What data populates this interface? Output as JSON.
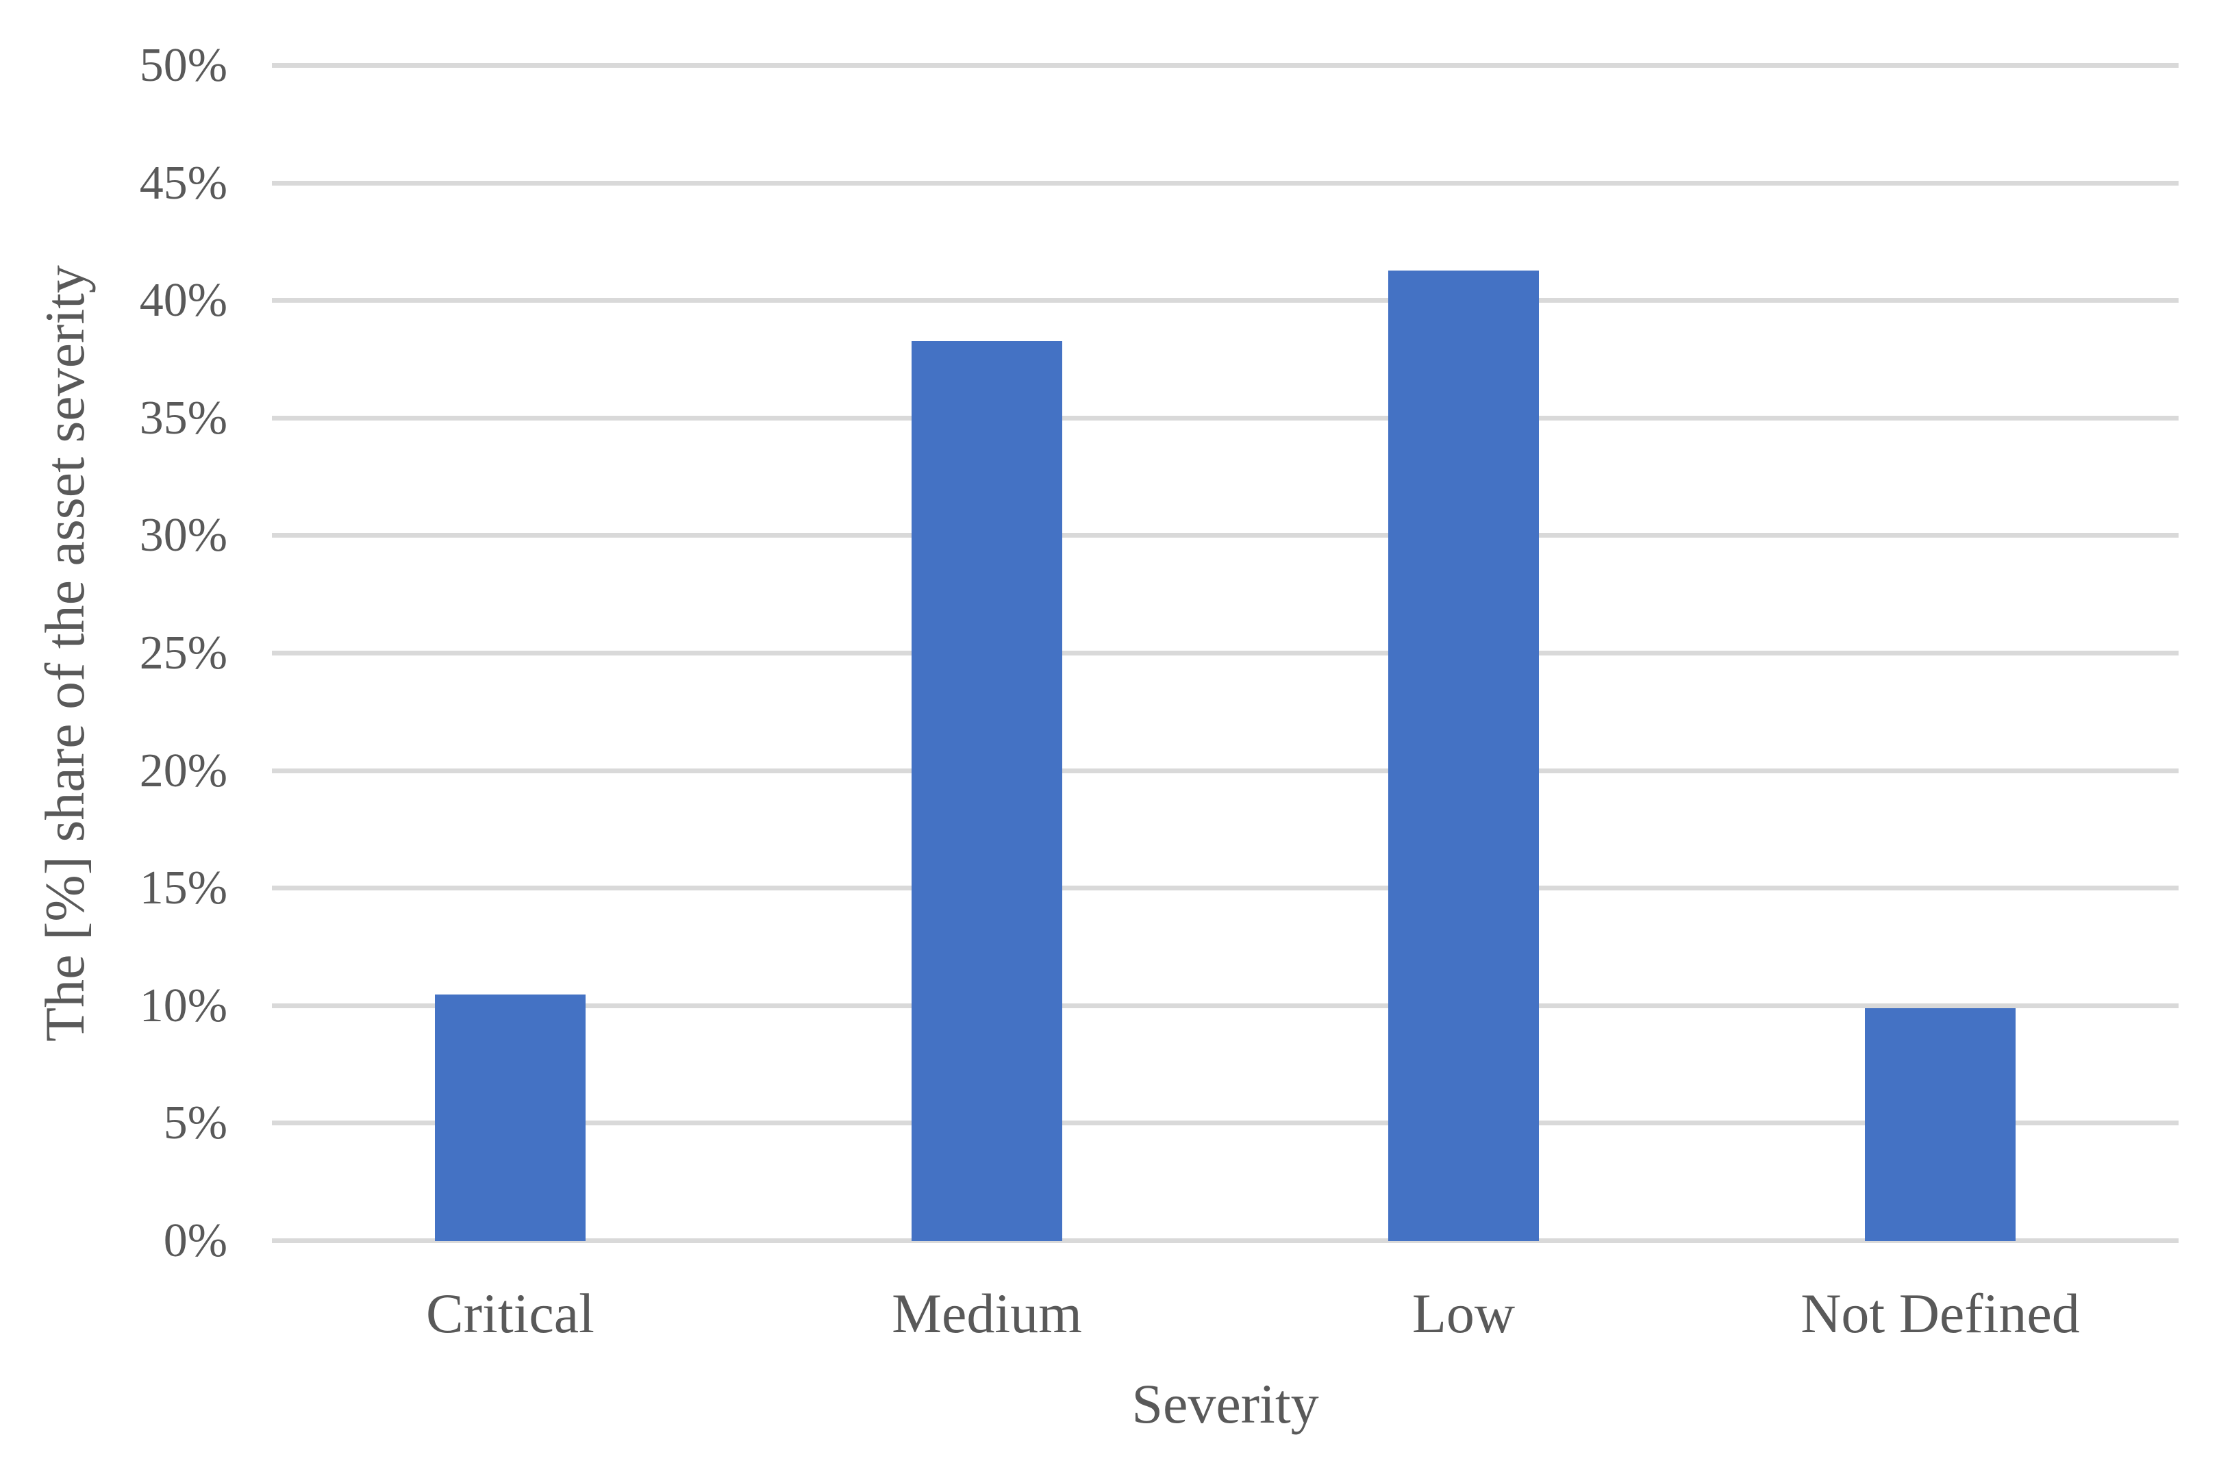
{
  "chart_data": {
    "type": "bar",
    "title": "",
    "xlabel": "Severity",
    "ylabel": "The [%] share of the asset severity",
    "categories": [
      "Critical",
      "Medium",
      "Low",
      "Not Defined"
    ],
    "values": [
      10.5,
      38.3,
      41.3,
      9.9
    ],
    "unit": "%",
    "ylim": [
      0,
      50
    ],
    "ytick_step": 5,
    "ytick_labels": [
      "0%",
      "5%",
      "10%",
      "15%",
      "20%",
      "25%",
      "30%",
      "35%",
      "40%",
      "45%",
      "50%"
    ],
    "grid": "horizontal-only",
    "legend": "none",
    "bar_gap_ratio": 0.69,
    "colors": {
      "bar": "#4472C4",
      "gridline": "#D9D9D9",
      "axis_text": "#595959",
      "background": "#FFFFFF"
    }
  }
}
